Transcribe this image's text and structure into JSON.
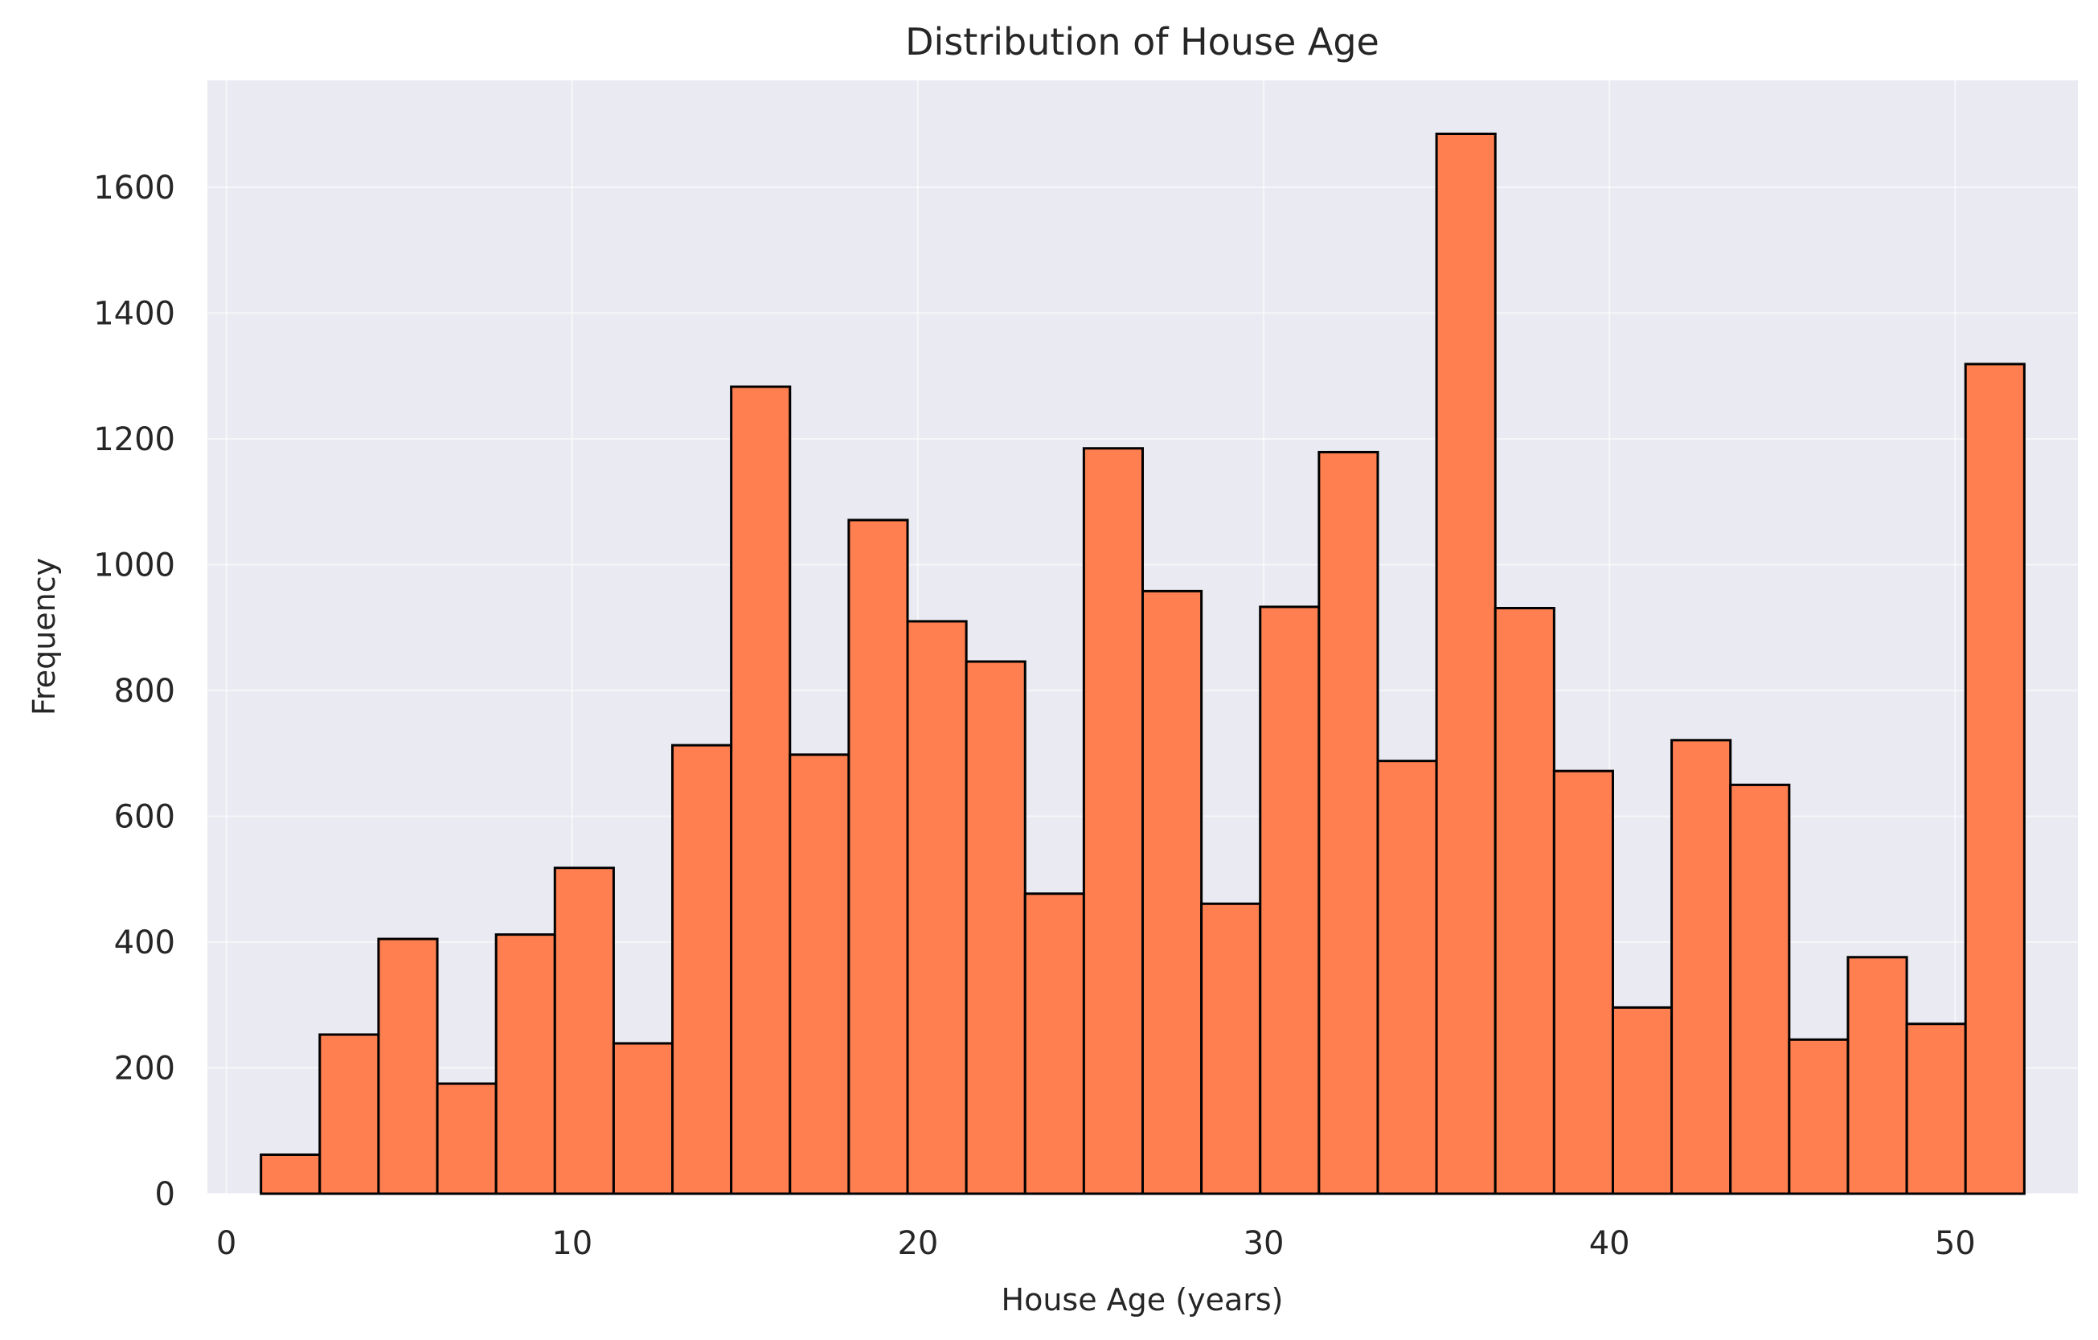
{
  "chart_data": {
    "type": "bar",
    "title": "Distribution of House Age",
    "xlabel": "House Age (years)",
    "ylabel": "Frequency",
    "xlim": [
      -0.55,
      53.55
    ],
    "ylim": [
      0,
      1770
    ],
    "xticks": [
      0,
      10,
      20,
      30,
      40,
      50
    ],
    "yticks": [
      0,
      200,
      400,
      600,
      800,
      1000,
      1200,
      1400,
      1600
    ],
    "grid": true,
    "bin_start": 1,
    "bin_end": 52,
    "bins": 30,
    "values": [
      62,
      253,
      405,
      175,
      412,
      518,
      239,
      713,
      1283,
      698,
      1071,
      910,
      846,
      477,
      1185,
      958,
      461,
      933,
      1179,
      688,
      1685,
      931,
      672,
      296,
      721,
      650,
      245,
      376,
      270,
      1319
    ],
    "colors": {
      "background": "#eaeaf2",
      "bar_fill": "#ff7f50",
      "bar_edge": "#000000",
      "grid": "#ffffff"
    }
  }
}
